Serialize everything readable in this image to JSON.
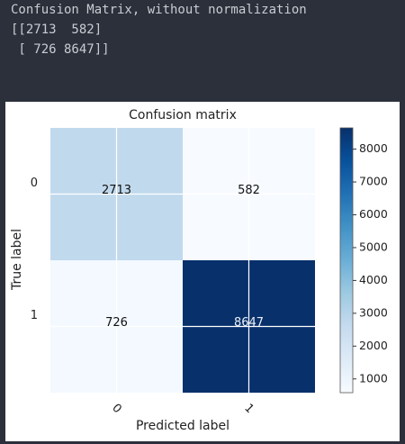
{
  "console": {
    "lines": [
      "Confusion Matrix, without normalization",
      "[[2713  582]",
      " [ 726 8647]]"
    ]
  },
  "chart_data": {
    "type": "heatmap",
    "title": "Confusion matrix",
    "x_categories": [
      "0",
      "1"
    ],
    "y_categories": [
      "0",
      "1"
    ],
    "values": [
      [
        2713,
        582
      ],
      [
        726,
        8647
      ]
    ],
    "xlabel": "Predicted label",
    "ylabel": "True label",
    "colormap": "Blues",
    "clim": [
      582,
      8647
    ],
    "cticks": [
      1000,
      2000,
      3000,
      4000,
      5000,
      6000,
      7000,
      8000
    ],
    "grid": true
  }
}
